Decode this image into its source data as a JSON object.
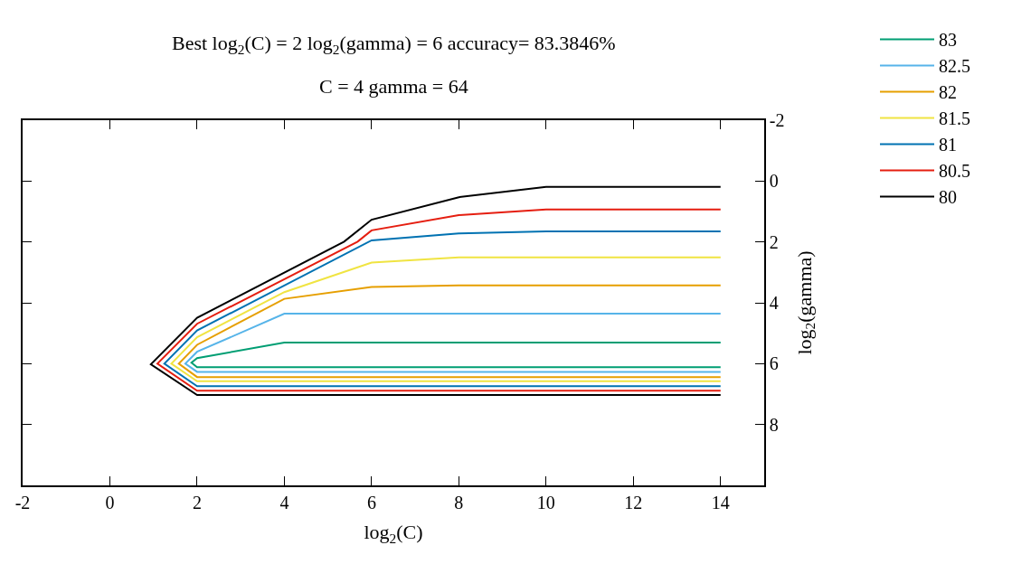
{
  "chart_data": {
    "type": "line",
    "title": "Best log$_{2}$(C) = 2 log$_{2}$(gamma) = 6 accuracy= 83.3846%",
    "subtitle": "C = 4 gamma = 64",
    "xlabel": "log$_{2}$(C)",
    "ylabel": "log$_{2}$(gamma)",
    "xlim": [
      -2,
      15
    ],
    "xticks": [
      -2,
      0,
      2,
      4,
      6,
      8,
      10,
      12,
      14
    ],
    "ylim": [
      10,
      -2
    ],
    "yticks": [
      -2,
      0,
      2,
      4,
      6,
      8
    ],
    "legend": "top right",
    "marker": "none",
    "line_style": "solid",
    "series": [
      {
        "name": "83",
        "color": "#009e73",
        "x": [
          14,
          4,
          2,
          1.87,
          2,
          14
        ],
        "values": [
          5.31,
          5.31,
          5.82,
          5.97,
          6.12,
          6.12
        ]
      },
      {
        "name": "82.5",
        "color": "#56b4e9",
        "x": [
          14,
          4,
          2,
          1.73,
          2,
          14
        ],
        "values": [
          4.36,
          4.36,
          5.61,
          6.0,
          6.27,
          6.27
        ]
      },
      {
        "name": "82",
        "color": "#e69f00",
        "x": [
          14,
          8,
          6,
          4,
          2,
          1.58,
          2,
          14
        ],
        "values": [
          3.43,
          3.43,
          3.48,
          3.87,
          5.38,
          6.0,
          6.44,
          6.44
        ]
      },
      {
        "name": "81.5",
        "color": "#f0e442",
        "x": [
          14,
          8,
          6,
          4,
          2,
          1.41,
          2,
          14
        ],
        "values": [
          2.51,
          2.51,
          2.68,
          3.65,
          5.13,
          6.0,
          6.58,
          6.58
        ]
      },
      {
        "name": "81",
        "color": "#0072b2",
        "x": [
          14,
          10,
          8,
          6,
          2,
          1.25,
          2,
          14
        ],
        "values": [
          1.65,
          1.65,
          1.72,
          1.95,
          4.91,
          6.0,
          6.74,
          6.74
        ]
      },
      {
        "name": "80.5",
        "color": "#e51e10",
        "x": [
          14,
          10,
          8,
          6,
          5.68,
          2,
          1.09,
          2,
          14
        ],
        "values": [
          0.93,
          0.93,
          1.12,
          1.62,
          1.99,
          4.69,
          6.0,
          6.89,
          6.89
        ]
      },
      {
        "name": "80",
        "color": "#000000",
        "x": [
          14,
          10,
          8,
          6,
          5.37,
          2,
          0.94,
          2,
          14
        ],
        "values": [
          0.19,
          0.19,
          0.53,
          1.27,
          1.99,
          4.49,
          6.02,
          7.03,
          7.03
        ]
      }
    ]
  }
}
